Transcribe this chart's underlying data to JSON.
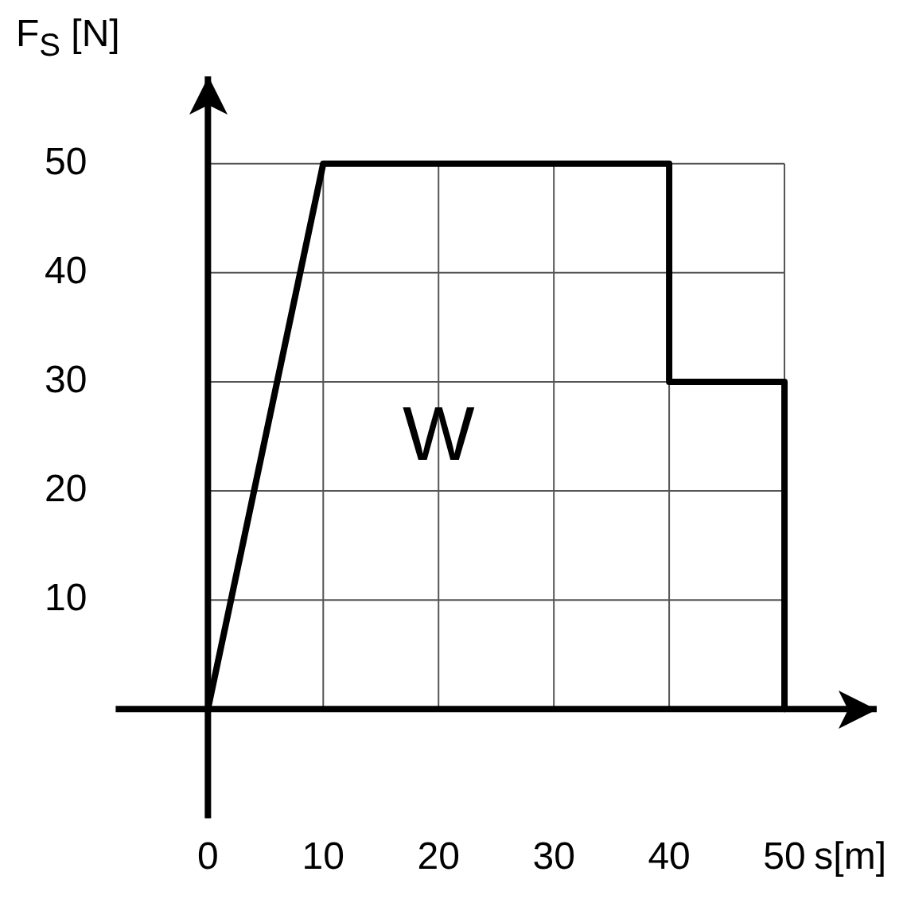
{
  "chart_data": {
    "type": "line",
    "xlabel": "s[m]",
    "ylabel": "F$_{S}$ [N]",
    "x": [
      0,
      10,
      40,
      40,
      50,
      50
    ],
    "series": [
      {
        "color": "#000000",
        "values": [
          0,
          50,
          50,
          30,
          30,
          0
        ]
      }
    ],
    "xlim": [
      -8,
      58
    ],
    "ylim": [
      -10,
      58
    ],
    "xticks": [
      0,
      10,
      20,
      30,
      40,
      50
    ],
    "yticks": [
      10,
      20,
      30,
      40,
      50
    ],
    "grid": true,
    "legend": false,
    "marker": "none",
    "line_style": "solid",
    "annotations": [
      "W"
    ]
  }
}
